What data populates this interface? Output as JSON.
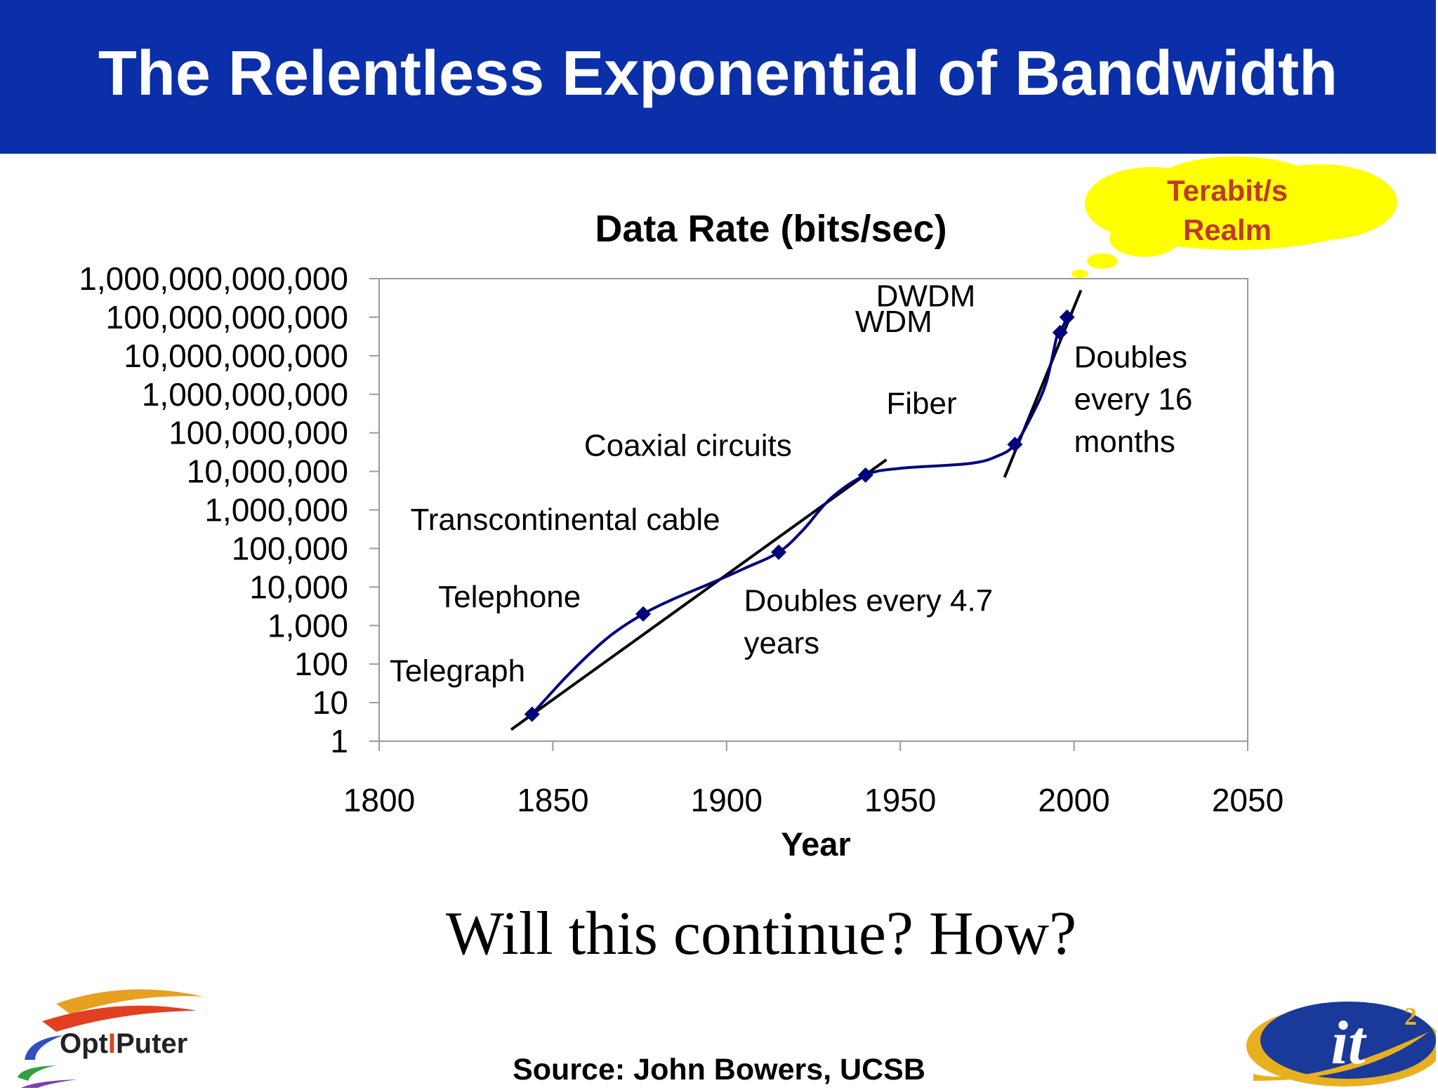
{
  "slide": {
    "title": "The Relentless Exponential of Bandwidth",
    "question": "Will this continue?  How?",
    "source": "Source: John Bowers, UCSB",
    "cloud_text": [
      "Terabit/s",
      "Realm"
    ]
  },
  "logos": {
    "left_text": [
      "Opt",
      "I",
      "Puter"
    ],
    "right_text": "it"
  },
  "colors": {
    "title_bg": "#0a2fa8",
    "series": "#00007a",
    "marker": "#00007a",
    "trend": "#000000",
    "cloud_fill": "#ffff00",
    "cloud_text": "#c0392b"
  },
  "chart_data": {
    "type": "line",
    "title": "Data Rate (bits/sec)",
    "xlabel": "Year",
    "ylabel": "",
    "xlim": [
      1800,
      2050
    ],
    "ylim": [
      1,
      1000000000000
    ],
    "yscale": "log",
    "x_ticks": [
      1800,
      1850,
      1900,
      1950,
      2000,
      2050
    ],
    "y_ticks": [
      "1",
      "10",
      "100",
      "1,000",
      "10,000",
      "100,000",
      "1,000,000",
      "10,000,000",
      "100,000,000",
      "1,000,000,000",
      "10,000,000,000",
      "100,000,000,000",
      "1,000,000,000,000"
    ],
    "grid": false,
    "points": [
      {
        "x": 1844,
        "y": 5
      },
      {
        "x": 1876,
        "y": 2000
      },
      {
        "x": 1915,
        "y": 80000
      },
      {
        "x": 1940,
        "y": 8000000
      },
      {
        "x": 1983,
        "y": 50000000
      },
      {
        "x": 1996,
        "y": 40000000000
      },
      {
        "x": 1998,
        "y": 100000000000
      }
    ],
    "curve": [
      {
        "x": 1844,
        "y": 5
      },
      {
        "x": 1855,
        "y": 60
      },
      {
        "x": 1866,
        "y": 500
      },
      {
        "x": 1876,
        "y": 2000
      },
      {
        "x": 1885,
        "y": 5000
      },
      {
        "x": 1895,
        "y": 12000
      },
      {
        "x": 1905,
        "y": 30000
      },
      {
        "x": 1915,
        "y": 80000
      },
      {
        "x": 1922,
        "y": 300000
      },
      {
        "x": 1930,
        "y": 2000000
      },
      {
        "x": 1940,
        "y": 8000000
      },
      {
        "x": 1950,
        "y": 12000000
      },
      {
        "x": 1970,
        "y": 16000000
      },
      {
        "x": 1978,
        "y": 25000000
      },
      {
        "x": 1983,
        "y": 50000000
      },
      {
        "x": 1988,
        "y": 300000000
      },
      {
        "x": 1992,
        "y": 2000000000
      },
      {
        "x": 1995,
        "y": 30000000000
      },
      {
        "x": 1996,
        "y": 40000000000
      },
      {
        "x": 1998,
        "y": 100000000000
      }
    ],
    "trend_lines": [
      {
        "from": {
          "x": 1838,
          "y": 2
        },
        "to": {
          "x": 1946,
          "y": 20000000
        }
      },
      {
        "from": {
          "x": 1980,
          "y": 7000000
        },
        "to": {
          "x": 2002,
          "y": 500000000000
        }
      }
    ],
    "annotations": [
      {
        "text": "Telegraph",
        "x": 1803,
        "y": 36
      },
      {
        "text": "Telephone",
        "x": 1817,
        "y": 3000
      },
      {
        "text": "Transcontinental cable",
        "x": 1809,
        "y": 300000
      },
      {
        "text": "Coaxial circuits",
        "x": 1859,
        "y": 25000000
      },
      {
        "text": "Fiber",
        "x": 1946,
        "y": 310000000
      },
      {
        "text": "WDM",
        "x": 1937,
        "y": 41000000000
      },
      {
        "text": "DWDM",
        "x": 1943,
        "y": 190000000000
      },
      {
        "text": "Doubles every 4.7",
        "x": 1905,
        "y": 2400
      },
      {
        "text": "years",
        "x": 1905,
        "y": 190
      },
      {
        "text": "Doubles",
        "x": 2000,
        "y": 5000000000
      },
      {
        "text": "every  16",
        "x": 2000,
        "y": 400000000
      },
      {
        "text": "months",
        "x": 2000,
        "y": 32000000
      }
    ]
  }
}
